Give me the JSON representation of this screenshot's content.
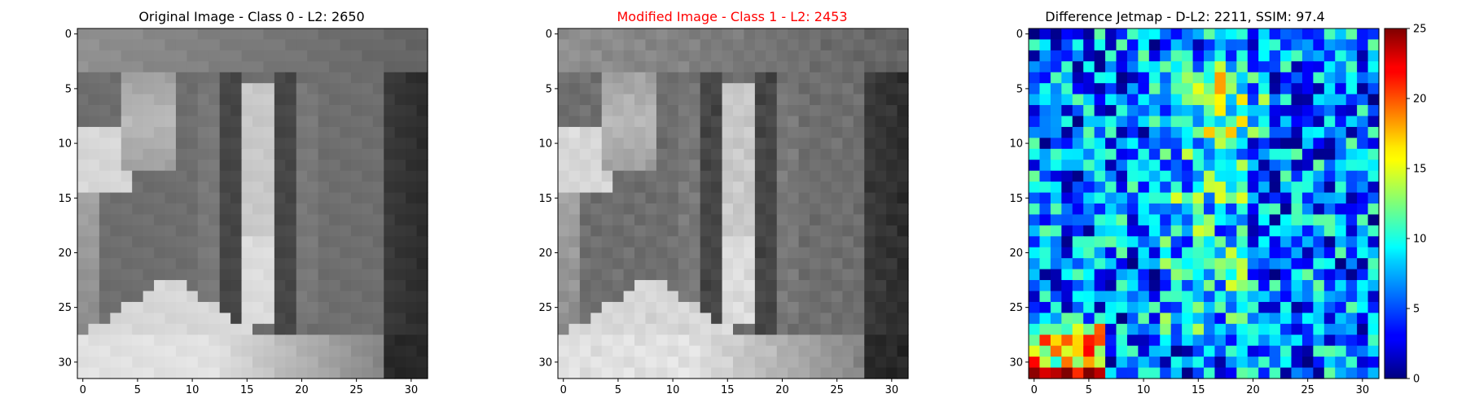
{
  "chart_data": [
    {
      "type": "heatmap",
      "title": "Original Image - Class 0 - L2: 2650",
      "title_color": "#000000",
      "colormap": "gray",
      "grid_size": [
        32,
        32
      ],
      "x_ticks": [
        0,
        5,
        10,
        15,
        20,
        25,
        30
      ],
      "y_ticks": [
        0,
        5,
        10,
        15,
        20,
        25,
        30
      ],
      "ylim": [
        31,
        0
      ],
      "xlim": [
        0,
        31
      ]
    },
    {
      "type": "heatmap",
      "title": "Modified Image - Class 1 - L2: 2453",
      "title_color": "#ff0000",
      "colormap": "gray",
      "grid_size": [
        32,
        32
      ],
      "x_ticks": [
        0,
        5,
        10,
        15,
        20,
        25,
        30
      ],
      "y_ticks": [
        0,
        5,
        10,
        15,
        20,
        25,
        30
      ],
      "ylim": [
        31,
        0
      ],
      "xlim": [
        0,
        31
      ]
    },
    {
      "type": "heatmap",
      "title": "Difference Jetmap - D-L2: 2211, SSIM: 97.4",
      "title_color": "#000000",
      "colormap": "jet",
      "grid_size": [
        32,
        32
      ],
      "x_ticks": [
        0,
        5,
        10,
        15,
        20,
        25,
        30
      ],
      "y_ticks": [
        0,
        5,
        10,
        15,
        20,
        25,
        30
      ],
      "ylim": [
        31,
        0
      ],
      "xlim": [
        0,
        31
      ],
      "colorbar": {
        "min": 0,
        "max": 25,
        "ticks": [
          0,
          5,
          10,
          15,
          20,
          25
        ]
      }
    }
  ]
}
